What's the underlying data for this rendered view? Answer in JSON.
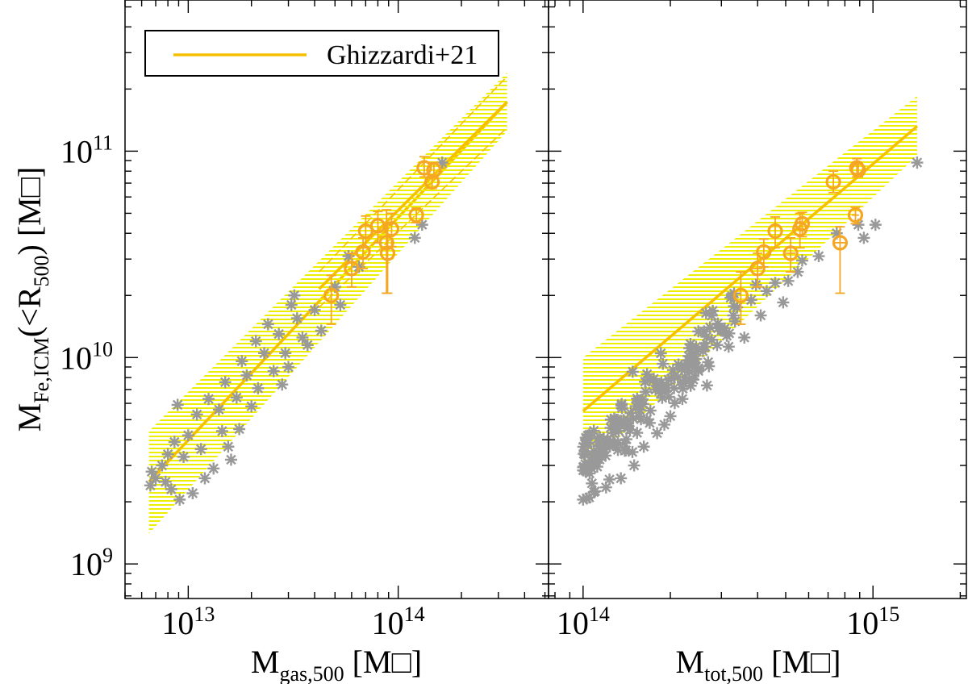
{
  "chart_data": [
    {
      "type": "scatter",
      "panel": "left",
      "xlabel": "M",
      "xlabel_sub": "gas,500",
      "xlabel_unit": "[M",
      "xlabel_unit_close": "]",
      "ylabel": "M",
      "ylabel_sub": "Fe,ICM",
      "ylabel_mid": "(<R",
      "ylabel_sub2": "500",
      "ylabel_end": ") [M",
      "ylabel_unit_close": "]",
      "xscale": "log",
      "yscale": "log",
      "xlim": [
        5000000000000.0,
        520000000000000.0
      ],
      "ylim": [
        680000000.0,
        540000000000.0
      ],
      "x_ticks": [
        {
          "value": 10000000000000.0,
          "base": "10",
          "exp": "13"
        },
        {
          "value": 100000000000000.0,
          "base": "10",
          "exp": "14"
        }
      ],
      "y_ticks": [
        {
          "value": 1000000000.0,
          "base": "10",
          "exp": "9"
        },
        {
          "value": 10000000000.0,
          "base": "10",
          "exp": "10"
        },
        {
          "value": 100000000000.0,
          "base": "10",
          "exp": "11"
        }
      ],
      "legend": {
        "position": "top-left",
        "entries": [
          {
            "label": "Ghizzardi+21",
            "color": "#f5c000"
          }
        ]
      },
      "colors": {
        "fit_line": "#f5c000",
        "band": "#f0f000",
        "observed": "#f5a623",
        "simulated": "#999999"
      },
      "fit_bands": [
        {
          "x": [
            6500000000000.0,
            330000000000000.0
          ],
          "center": [
            2500000000.0,
            173000000000.0
          ],
          "lower": [
            1400000000.0,
            125000000000.0
          ],
          "upper": [
            4400000000.0,
            240000000000.0
          ]
        },
        {
          "x": [
            42000000000000.0,
            330000000000000.0
          ],
          "center": [
            21500000000.0,
            173000000000.0
          ],
          "lower": [
            17500000000.0,
            130000000000.0
          ],
          "upper": [
            26000000000.0,
            230000000000.0
          ]
        }
      ],
      "observed": [
        {
          "x": 48000000000000.0,
          "y": 20000000000.0,
          "yerr": [
            5500000000.0,
            5000000000.0
          ]
        },
        {
          "x": 60000000000000.0,
          "y": 27000000000.0,
          "yerr": [
            5000000000.0,
            5000000000.0
          ]
        },
        {
          "x": 68000000000000.0,
          "y": 32500000000.0,
          "yerr": [
            5500000000.0,
            5500000000.0
          ]
        },
        {
          "x": 70000000000000.0,
          "y": 41000000000.0,
          "yerr": [
            7000000000.0,
            7500000000.0
          ]
        },
        {
          "x": 80000000000000.0,
          "y": 43500000000.0,
          "yerr": [
            7500000000.0,
            7500000000.0
          ]
        },
        {
          "x": 88000000000000.0,
          "y": 36000000000.0,
          "yerr": [
            15500000000.0,
            16000000000.0
          ]
        },
        {
          "x": 89000000000000.0,
          "y": 32000000000.0,
          "yerr": [
            11500000000.0,
            12000000000.0
          ]
        },
        {
          "x": 93000000000000.0,
          "y": 42000000000.0,
          "yerr": [
            7500000000.0,
            8000000000.0
          ]
        },
        {
          "x": 122000000000000.0,
          "y": 49000000000.0,
          "yerr": [
            4000000000.0,
            4000000000.0
          ]
        },
        {
          "x": 133000000000000.0,
          "y": 83000000000.0,
          "yerr": [
            8000000000.0,
            11000000000.0
          ]
        },
        {
          "x": 145000000000000.0,
          "y": 71000000000.0,
          "yerr": [
            5000000000.0,
            5000000000.0
          ]
        },
        {
          "x": 148000000000000.0,
          "y": 81000000000.0,
          "yerr": [
            7000000000.0,
            7000000000.0
          ]
        }
      ],
      "simulated": [
        {
          "x": 6600000000000.0,
          "y": 2400000000.0
        },
        {
          "x": 6700000000000.0,
          "y": 2800000000.0
        },
        {
          "x": 7000000000000.0,
          "y": 2600000000.0
        },
        {
          "x": 7500000000000.0,
          "y": 3000000000.0
        },
        {
          "x": 7800000000000.0,
          "y": 2500000000.0
        },
        {
          "x": 8000000000000.0,
          "y": 3400000000.0
        },
        {
          "x": 8300000000000.0,
          "y": 2300000000.0
        },
        {
          "x": 8600000000000.0,
          "y": 3900000000.0
        },
        {
          "x": 8900000000000.0,
          "y": 5900000000.0
        },
        {
          "x": 9100000000000.0,
          "y": 2050000000.0
        },
        {
          "x": 9500000000000.0,
          "y": 3300000000.0
        },
        {
          "x": 10000000000000.0,
          "y": 4200000000.0
        },
        {
          "x": 10500000000000.0,
          "y": 2200000000.0
        },
        {
          "x": 11000000000000.0,
          "y": 5300000000.0
        },
        {
          "x": 11500000000000.0,
          "y": 3600000000.0
        },
        {
          "x": 12000000000000.0,
          "y": 2600000000.0
        },
        {
          "x": 12500000000000.0,
          "y": 6300000000.0
        },
        {
          "x": 13200000000000.0,
          "y": 2900000000.0
        },
        {
          "x": 14000000000000.0,
          "y": 5600000000.0
        },
        {
          "x": 14500000000000.0,
          "y": 4400000000.0
        },
        {
          "x": 15000000000000.0,
          "y": 7600000000.0
        },
        {
          "x": 15500000000000.0,
          "y": 3700000000.0
        },
        {
          "x": 16000000000000.0,
          "y": 3200000000.0
        },
        {
          "x": 17000000000000.0,
          "y": 6400000000.0
        },
        {
          "x": 17500000000000.0,
          "y": 4500000000.0
        },
        {
          "x": 18000000000000.0,
          "y": 9600000000.0
        },
        {
          "x": 19000000000000.0,
          "y": 8200000000.0
        },
        {
          "x": 20000000000000.0,
          "y": 5800000000.0
        },
        {
          "x": 21000000000000.0,
          "y": 12000000000.0
        },
        {
          "x": 21500000000000.0,
          "y": 7100000000.0
        },
        {
          "x": 23000000000000.0,
          "y": 10500000000.0
        },
        {
          "x": 24000000000000.0,
          "y": 14500000000.0
        },
        {
          "x": 25500000000000.0,
          "y": 8600000000.0
        },
        {
          "x": 27000000000000.0,
          "y": 13000000000.0
        },
        {
          "x": 28000000000000.0,
          "y": 7400000000.0
        },
        {
          "x": 29000000000000.0,
          "y": 10500000000.0
        },
        {
          "x": 30000000000000.0,
          "y": 9000000000.0
        },
        {
          "x": 31000000000000.0,
          "y": 18000000000.0
        },
        {
          "x": 32000000000000.0,
          "y": 20000000000.0
        },
        {
          "x": 33000000000000.0,
          "y": 15500000000.0
        },
        {
          "x": 35000000000000.0,
          "y": 12500000000.0
        },
        {
          "x": 37000000000000.0,
          "y": 11500000000.0
        },
        {
          "x": 40000000000000.0,
          "y": 17000000000.0
        },
        {
          "x": 43000000000000.0,
          "y": 13500000000.0
        },
        {
          "x": 50000000000000.0,
          "y": 22000000000.0
        },
        {
          "x": 53000000000000.0,
          "y": 18000000000.0
        },
        {
          "x": 58000000000000.0,
          "y": 31000000000.0
        },
        {
          "x": 65000000000000.0,
          "y": 27500000000.0
        },
        {
          "x": 120000000000000.0,
          "y": 38000000000.0
        },
        {
          "x": 130000000000000.0,
          "y": 44000000000.0
        },
        {
          "x": 162000000000000.0,
          "y": 88000000000.0
        }
      ]
    },
    {
      "type": "scatter",
      "panel": "right",
      "xlabel": "M",
      "xlabel_sub": "tot,500",
      "xlabel_unit": "[M",
      "xlabel_unit_close": "]",
      "xscale": "log",
      "yscale": "log",
      "xlim": [
        76000000000000.0,
        2100000000000000.0
      ],
      "ylim": [
        680000000.0,
        540000000000.0
      ],
      "x_ticks": [
        {
          "value": 100000000000000.0,
          "base": "10",
          "exp": "14"
        },
        {
          "value": 1000000000000000.0,
          "base": "10",
          "exp": "15"
        }
      ],
      "y_ticks": [],
      "fit_bands": [
        {
          "x": [
            100000000000000.0,
            1420000000000000.0
          ],
          "center": [
            5500000000.0,
            132000000000.0
          ],
          "lower": [
            2800000000.0,
            95000000000.0
          ],
          "upper": [
            10000000000.0,
            185000000000.0
          ]
        }
      ],
      "observed": [
        {
          "x": 350000000000000.0,
          "y": 20000000000.0,
          "yerr": [
            5500000000.0,
            6000000000.0
          ],
          "xerr": [
            0,
            0
          ]
        },
        {
          "x": 400000000000000.0,
          "y": 27000000000.0,
          "yerr": [
            5000000000.0,
            5000000000.0
          ],
          "xerr": [
            15000000000000.0,
            15000000000000.0
          ]
        },
        {
          "x": 420000000000000.0,
          "y": 32500000000.0,
          "yerr": [
            5000000000.0,
            5000000000.0
          ],
          "xerr": [
            0,
            0
          ]
        },
        {
          "x": 460000000000000.0,
          "y": 41000000000.0,
          "yerr": [
            7000000000.0,
            7000000000.0
          ],
          "xerr": [
            0,
            0
          ]
        },
        {
          "x": 520000000000000.0,
          "y": 32000000000.0,
          "yerr": [
            6000000000.0,
            6000000000.0
          ],
          "xerr": [
            20000000000000.0,
            20000000000000.0
          ]
        },
        {
          "x": 560000000000000.0,
          "y": 42000000000.0,
          "yerr": [
            8000000000.0,
            8000000000.0
          ],
          "xerr": [
            20000000000000.0,
            20000000000000.0
          ]
        },
        {
          "x": 570000000000000.0,
          "y": 44500000000.0,
          "yerr": [
            6000000000.0,
            6000000000.0
          ],
          "xerr": [
            0,
            0
          ]
        },
        {
          "x": 730000000000000.0,
          "y": 71000000000.0,
          "yerr": [
            8000000000.0,
            9000000000.0
          ],
          "xerr": [
            0,
            0
          ]
        },
        {
          "x": 770000000000000.0,
          "y": 36000000000.0,
          "yerr": [
            15500000000.0,
            7000000000.0
          ],
          "xerr": [
            40000000000000.0,
            40000000000000.0
          ]
        },
        {
          "x": 870000000000000.0,
          "y": 49000000000.0,
          "yerr": [
            4500000000.0,
            4500000000.0
          ],
          "xerr": [
            25000000000000.0,
            25000000000000.0
          ]
        },
        {
          "x": 880000000000000.0,
          "y": 83000000000.0,
          "yerr": [
            8000000000.0,
            9000000000.0
          ],
          "xerr": [
            0,
            0
          ]
        },
        {
          "x": 890000000000000.0,
          "y": 81000000000.0,
          "yerr": [
            6000000000.0,
            6000000000.0
          ],
          "xerr": [
            0,
            0
          ]
        }
      ],
      "simulated_cluster": {
        "x_range": [
          100000000000000.0,
          340000000000000.0
        ],
        "y_at_xmin": 2900000000.0,
        "slope": 1.45,
        "scatter_dex": 0.08,
        "count": 170
      },
      "simulated": [
        {
          "x": 100000000000000.0,
          "y": 2050000000.0
        },
        {
          "x": 105000000000000.0,
          "y": 2100000000.0
        },
        {
          "x": 110000000000000.0,
          "y": 2250000000.0
        },
        {
          "x": 120000000000000.0,
          "y": 2350000000.0
        },
        {
          "x": 135000000000000.0,
          "y": 2600000000.0
        },
        {
          "x": 150000000000000.0,
          "y": 3000000000.0
        },
        {
          "x": 162000000000000.0,
          "y": 3700000000.0
        },
        {
          "x": 180000000000000.0,
          "y": 4300000000.0
        },
        {
          "x": 200000000000000.0,
          "y": 5200000000.0
        },
        {
          "x": 220000000000000.0,
          "y": 6300000000.0
        },
        {
          "x": 235000000000000.0,
          "y": 7300000000.0
        },
        {
          "x": 250000000000000.0,
          "y": 8600000000.0
        },
        {
          "x": 270000000000000.0,
          "y": 9500000000.0
        },
        {
          "x": 290000000000000.0,
          "y": 11500000000.0
        },
        {
          "x": 300000000000000.0,
          "y": 13500000000.0
        },
        {
          "x": 330000000000000.0,
          "y": 16000000000.0
        },
        {
          "x": 340000000000000.0,
          "y": 17500000000.0
        },
        {
          "x": 360000000000000.0,
          "y": 12500000000.0
        },
        {
          "x": 380000000000000.0,
          "y": 19000000000.0
        },
        {
          "x": 395000000000000.0,
          "y": 22500000000.0
        },
        {
          "x": 410000000000000.0,
          "y": 16000000000.0
        },
        {
          "x": 430000000000000.0,
          "y": 21000000000.0
        },
        {
          "x": 460000000000000.0,
          "y": 23000000000.0
        },
        {
          "x": 490000000000000.0,
          "y": 18500000000.0
        },
        {
          "x": 510000000000000.0,
          "y": 23500000000.0
        },
        {
          "x": 550000000000000.0,
          "y": 26000000000.0
        },
        {
          "x": 570000000000000.0,
          "y": 29500000000.0
        },
        {
          "x": 650000000000000.0,
          "y": 31000000000.0
        },
        {
          "x": 750000000000000.0,
          "y": 40000000000.0
        },
        {
          "x": 890000000000000.0,
          "y": 44000000000.0
        },
        {
          "x": 930000000000000.0,
          "y": 38000000000.0
        },
        {
          "x": 1020000000000000.0,
          "y": 44000000000.0
        },
        {
          "x": 1420000000000000.0,
          "y": 88000000000.0
        }
      ]
    }
  ]
}
